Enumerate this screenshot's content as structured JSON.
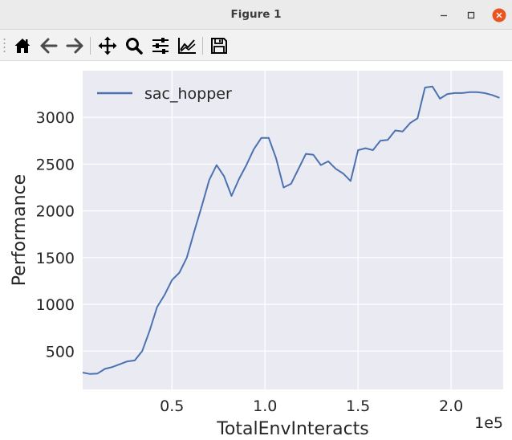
{
  "window": {
    "title": "Figure 1",
    "controls": [
      "minimize",
      "maximize",
      "close"
    ],
    "close_color": "#e95420"
  },
  "toolbar": {
    "tools": [
      {
        "name": "home",
        "icon": "home-icon"
      },
      {
        "name": "back",
        "icon": "arrow-left-icon"
      },
      {
        "name": "forward",
        "icon": "arrow-right-icon"
      },
      {
        "name": "pan",
        "icon": "move-icon"
      },
      {
        "name": "zoom",
        "icon": "magnifier-icon"
      },
      {
        "name": "configure-subplots",
        "icon": "sliders-icon"
      },
      {
        "name": "edit-axis",
        "icon": "line-chart-icon"
      },
      {
        "name": "save",
        "icon": "floppy-disk-icon"
      }
    ]
  },
  "chart_data": {
    "type": "line",
    "title": "",
    "xlabel": "TotalEnvInteracts",
    "ylabel": "Performance",
    "x_offset_label": "1e5",
    "xlim": [
      0.02,
      2.28
    ],
    "ylim": [
      90,
      3500
    ],
    "xticks": [
      0.5,
      1.0,
      1.5,
      2.0
    ],
    "xtick_labels": [
      "0.5",
      "1.0",
      "1.5",
      "2.0"
    ],
    "yticks": [
      500,
      1000,
      1500,
      2000,
      2500,
      3000
    ],
    "ytick_labels": [
      "500",
      "1000",
      "1500",
      "2000",
      "2500",
      "3000"
    ],
    "grid": true,
    "background": "#eaeaf2",
    "legend_position": "top-left",
    "series": [
      {
        "name": "sac_hopper",
        "color": "#4c72b0",
        "x": [
          0.02,
          0.06,
          0.1,
          0.14,
          0.18,
          0.22,
          0.26,
          0.3,
          0.34,
          0.38,
          0.42,
          0.46,
          0.5,
          0.54,
          0.58,
          0.62,
          0.66,
          0.7,
          0.74,
          0.78,
          0.82,
          0.86,
          0.9,
          0.94,
          0.98,
          1.02,
          1.06,
          1.1,
          1.14,
          1.18,
          1.22,
          1.26,
          1.3,
          1.34,
          1.38,
          1.42,
          1.46,
          1.5,
          1.54,
          1.58,
          1.62,
          1.66,
          1.7,
          1.74,
          1.78,
          1.82,
          1.86,
          1.9,
          1.94,
          1.98,
          2.02,
          2.06,
          2.1,
          2.14,
          2.18,
          2.22,
          2.26
        ],
        "y": [
          270,
          255,
          260,
          310,
          330,
          360,
          390,
          400,
          500,
          720,
          970,
          1100,
          1260,
          1340,
          1500,
          1780,
          2050,
          2330,
          2490,
          2370,
          2160,
          2340,
          2490,
          2660,
          2780,
          2780,
          2560,
          2250,
          2290,
          2450,
          2610,
          2600,
          2490,
          2530,
          2450,
          2400,
          2320,
          2650,
          2670,
          2650,
          2750,
          2760,
          2860,
          2850,
          2940,
          2990,
          3320,
          3330,
          3200,
          3250,
          3260,
          3260,
          3270,
          3270,
          3260,
          3240,
          3210
        ]
      }
    ]
  }
}
